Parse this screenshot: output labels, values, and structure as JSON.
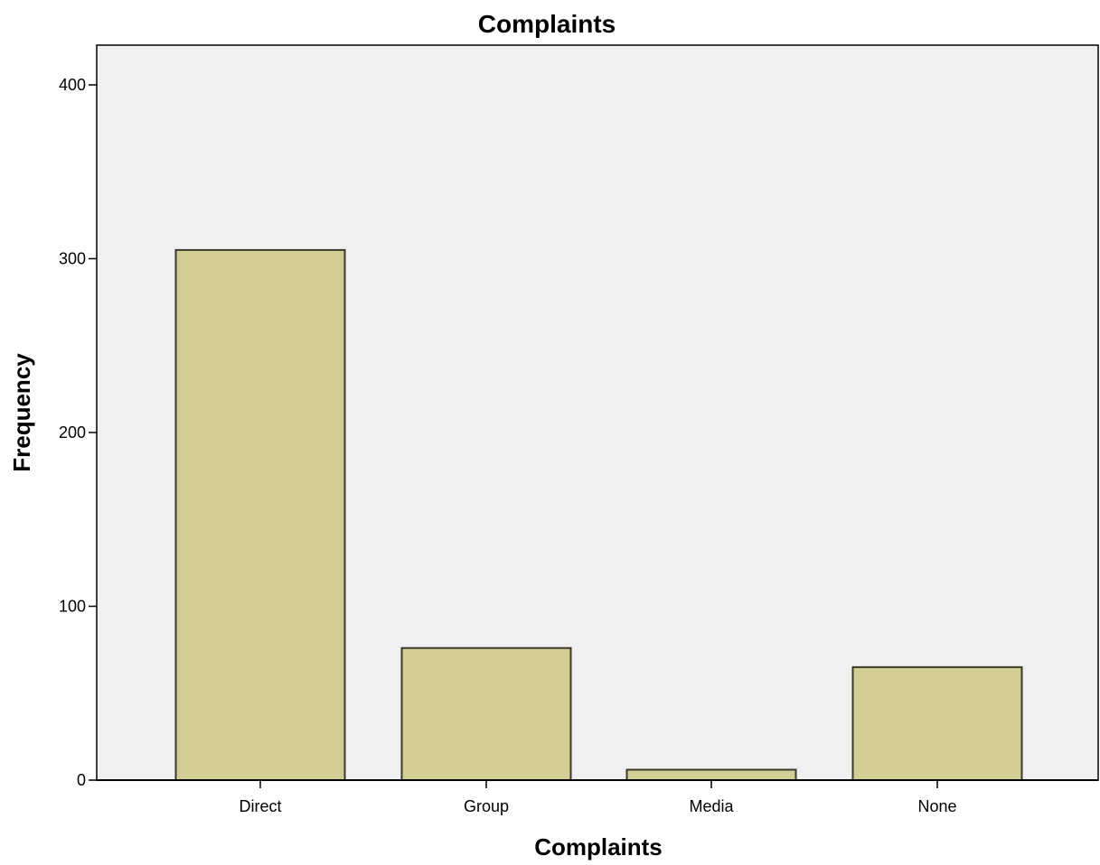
{
  "chart_data": {
    "type": "bar",
    "title": "Complaints",
    "xlabel": "Complaints",
    "ylabel": "Frequency",
    "categories": [
      "Direct",
      "Group",
      "Media",
      "None"
    ],
    "values": [
      305,
      76,
      6,
      65
    ],
    "ylim": [
      0,
      420
    ],
    "yticks": [
      0,
      100,
      200,
      300,
      400
    ],
    "grid": false,
    "legend": "none",
    "colors": {
      "bar_fill": "#d3cd96",
      "bar_stroke": "#3a3a2a",
      "plot_background": "#f0f0f0",
      "axis": "#000000"
    }
  }
}
